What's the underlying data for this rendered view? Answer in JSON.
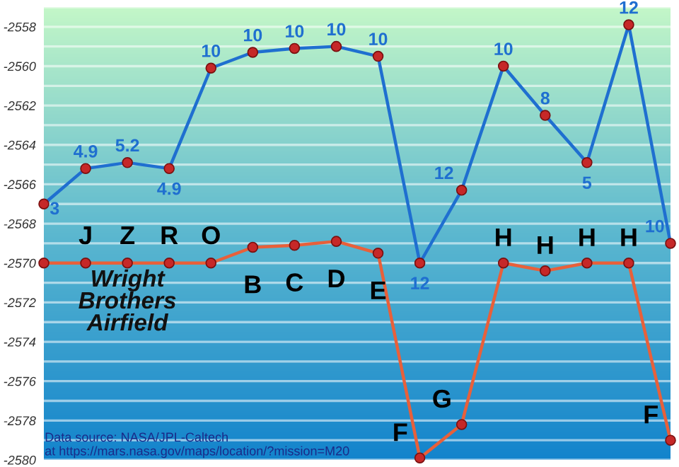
{
  "chart_data": {
    "type": "line",
    "categories": [
      null,
      null,
      null,
      null,
      null,
      null,
      null,
      null,
      null,
      null,
      null,
      null,
      null,
      null,
      null,
      null
    ],
    "series": [
      {
        "color": "#1f6fd0",
        "values": [
          -2567.0,
          -2565.2,
          -2564.9,
          -2565.2,
          -2560.1,
          -2559.3,
          -2559.1,
          -2559.0,
          -2559.5,
          -2570.0,
          -2566.3,
          -2560.0,
          -2562.5,
          -2564.9,
          -2557.9,
          -2569.0
        ]
      },
      {
        "color": "#e8603a",
        "values": [
          -2570.0,
          -2570.0,
          -2570.0,
          -2570.0,
          -2570.0,
          -2569.2,
          -2569.1,
          -2568.9,
          -2569.5,
          -2579.9,
          -2578.2,
          -2570.0,
          -2570.4,
          -2570.0,
          -2570.0,
          -2579.0
        ],
        "value_labels": [
          null,
          "J",
          "Z",
          "R",
          "O",
          "B",
          "C",
          "D",
          "E",
          "F",
          "G",
          "H",
          "H",
          "H",
          "H",
          "F"
        ]
      }
    ],
    "ylim": [
      -2580,
      -2557
    ],
    "yticks": [
      -2580,
      {
        "value": -2579,
        "label": null
      },
      -2578,
      {
        "value": -2577,
        "label": null
      },
      -2576,
      {
        "value": -2575,
        "label": null
      },
      -2574,
      {
        "value": -2573,
        "label": null
      },
      -2572,
      {
        "value": -2571,
        "label": null
      },
      -2570,
      {
        "value": -2569,
        "label": null
      },
      -2568,
      {
        "value": -2567,
        "label": null
      },
      -2566,
      {
        "value": -2565,
        "label": null
      },
      -2564,
      {
        "value": -2563,
        "label": null
      },
      -2562,
      {
        "value": -2561,
        "label": null
      },
      -2560,
      {
        "value": -2559,
        "label": null
      },
      -2558,
      {
        "value": -2557,
        "label": null
      }
    ],
    "grid": "y",
    "marker": "circle",
    "line_style": "solid",
    "annotations": [
      "Wright Brothers Airfield",
      "Data source: NASA/JPL-Caltech\nat https://mars.nasa.gov/maps/location/?mission=M20",
      "3",
      "4.9",
      "5.2",
      "4.9",
      "10",
      "10",
      "10",
      "10",
      "10",
      "12",
      "12",
      "10",
      "8",
      "5",
      "12",
      "10"
    ]
  }
}
